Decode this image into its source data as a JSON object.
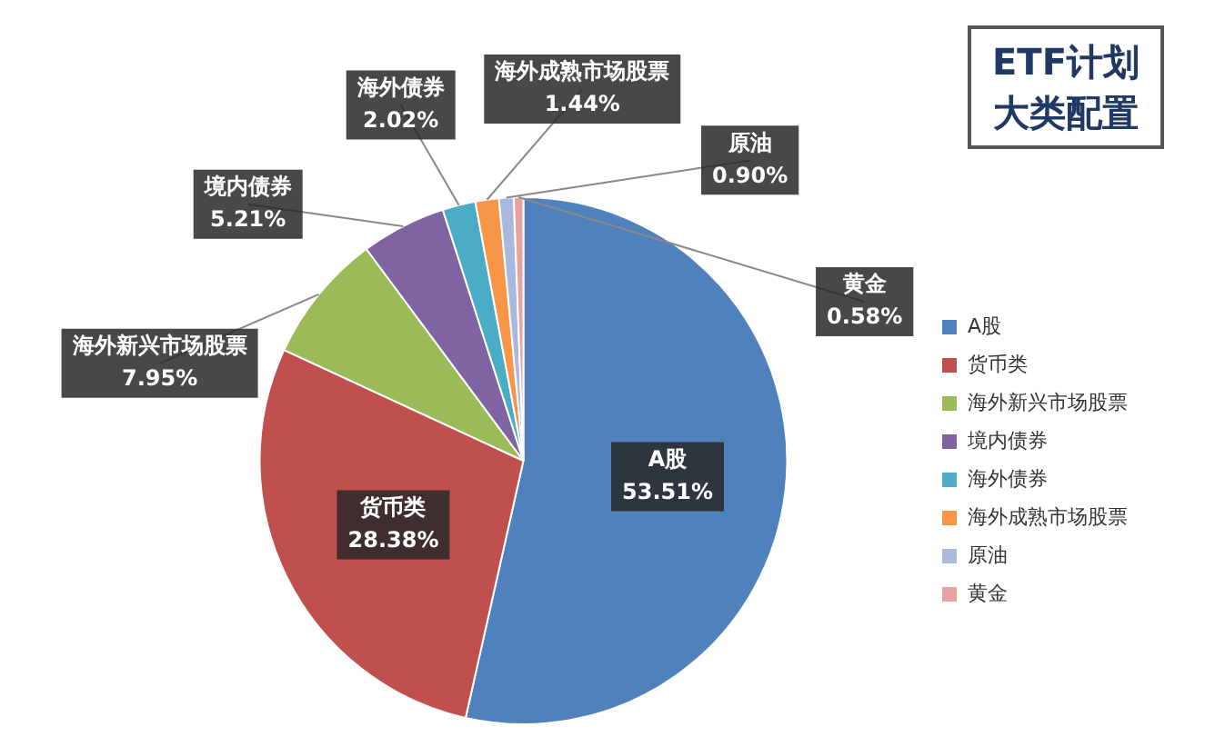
{
  "chart_data": {
    "type": "pie",
    "title": "ETF计划大类配置",
    "categories": [
      "A股",
      "货币类",
      "海外新兴市场股票",
      "境内债券",
      "海外债券",
      "海外成熟市场股票",
      "原油",
      "黄金"
    ],
    "values": [
      53.51,
      28.38,
      7.95,
      5.21,
      2.02,
      1.44,
      0.9,
      0.58
    ],
    "value_labels": [
      "53.51%",
      "28.38%",
      "7.95%",
      "5.21%",
      "2.02%",
      "1.44%",
      "0.90%",
      "0.58%"
    ],
    "colors": [
      "#4f81bd",
      "#c0504d",
      "#9bbb59",
      "#8064a2",
      "#4bacc6",
      "#f79646",
      "#a9b8dc",
      "#e6a3a1"
    ],
    "legend": "right"
  }
}
